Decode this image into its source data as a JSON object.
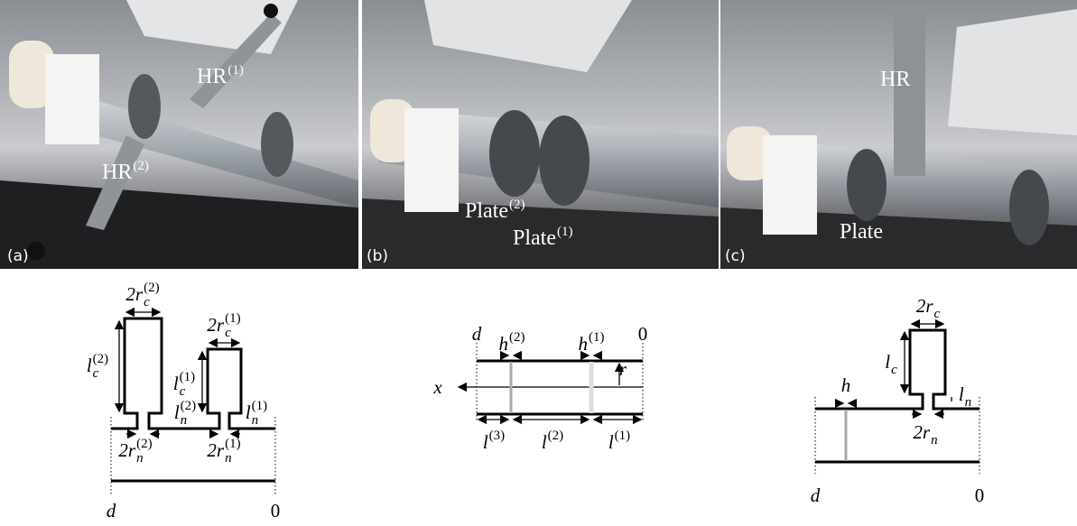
{
  "panels": [
    {
      "tag": "(a)",
      "labels": [
        {
          "base": "HR",
          "sup": "(1)"
        },
        {
          "base": "HR",
          "sup": "(2)"
        }
      ]
    },
    {
      "tag": "(b)",
      "labels": [
        {
          "base": "Plate",
          "sup": "(2)"
        },
        {
          "base": "Plate",
          "sup": "(1)"
        }
      ]
    },
    {
      "tag": "(c)",
      "labels": [
        {
          "base": "HR"
        },
        {
          "base": "Plate"
        }
      ]
    }
  ],
  "schematics": [
    {
      "labels": [
        {
          "base": "2r",
          "sub": "c",
          "sup": "(2)"
        },
        {
          "base": "l",
          "sub": "c",
          "sup": "(2)"
        },
        {
          "base": "2r",
          "sub": "c",
          "sup": "(1)"
        },
        {
          "base": "l",
          "sub": "c",
          "sup": "(1)"
        },
        {
          "base": "l",
          "sub": "n",
          "sup": "(2)"
        },
        {
          "base": "l",
          "sub": "n",
          "sup": "(1)"
        },
        {
          "base": "2r",
          "sub": "n",
          "sup": "(2)"
        },
        {
          "base": "2r",
          "sub": "n",
          "sup": "(1)"
        },
        {
          "base": "d"
        },
        {
          "base": "0"
        }
      ]
    },
    {
      "labels": [
        {
          "base": "d"
        },
        {
          "base": "0"
        },
        {
          "base": "h",
          "sup": "(2)"
        },
        {
          "base": "h",
          "sup": "(1)"
        },
        {
          "base": "r"
        },
        {
          "base": "x"
        },
        {
          "base": "l",
          "sup": "(3)"
        },
        {
          "base": "l",
          "sup": "(2)"
        },
        {
          "base": "l",
          "sup": "(1)"
        }
      ]
    },
    {
      "labels": [
        {
          "base": "2r",
          "sub": "c"
        },
        {
          "base": "l",
          "sub": "c"
        },
        {
          "base": "h"
        },
        {
          "base": "l",
          "sub": "n"
        },
        {
          "base": "2r",
          "sub": "n"
        },
        {
          "base": "d"
        },
        {
          "base": "0"
        }
      ]
    }
  ]
}
